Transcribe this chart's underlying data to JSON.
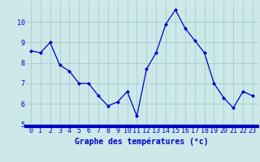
{
  "hours": [
    0,
    1,
    2,
    3,
    4,
    5,
    6,
    7,
    8,
    9,
    10,
    11,
    12,
    13,
    14,
    15,
    16,
    17,
    18,
    19,
    20,
    21,
    22,
    23
  ],
  "temps": [
    8.6,
    8.5,
    9.0,
    7.9,
    7.6,
    7.0,
    7.0,
    6.4,
    5.9,
    6.1,
    6.6,
    5.4,
    7.7,
    8.5,
    9.9,
    10.6,
    9.7,
    9.1,
    8.5,
    7.0,
    6.3,
    5.8,
    6.6,
    6.4
  ],
  "xlabel": "Graphe des températures (°c)",
  "xlim": [
    -0.5,
    23.5
  ],
  "ylim": [
    4.9,
    11.0
  ],
  "yticks": [
    5,
    6,
    7,
    8,
    9,
    10
  ],
  "xticks": [
    0,
    1,
    2,
    3,
    4,
    5,
    6,
    7,
    8,
    9,
    10,
    11,
    12,
    13,
    14,
    15,
    16,
    17,
    18,
    19,
    20,
    21,
    22,
    23
  ],
  "line_color": "#0000cc",
  "marker": "D",
  "marker_size": 2.0,
  "bg_color": "#cce8e8",
  "grid_color": "#aacccc",
  "xlabel_color": "#0000cc",
  "xlabel_fontsize": 7,
  "tick_label_color": "#0000cc",
  "tick_fontsize": 6,
  "bottom_bar_color": "#0000cc",
  "bottom_bar_height": 0.13
}
